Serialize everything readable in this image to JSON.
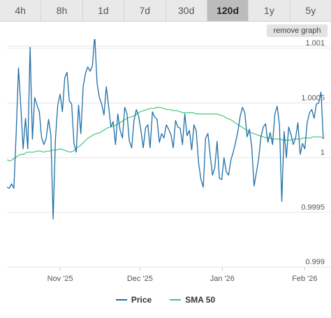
{
  "range_tabs": [
    {
      "label": "4h"
    },
    {
      "label": "8h"
    },
    {
      "label": "1d"
    },
    {
      "label": "7d"
    },
    {
      "label": "30d"
    },
    {
      "label": "120d",
      "active": true
    },
    {
      "label": "1y"
    },
    {
      "label": "5y"
    }
  ],
  "remove_graph_label": "remove graph",
  "colors": {
    "price": "#1f6fa8",
    "sma": "#3ec97a",
    "grid": "#e6e6e6",
    "tab_active": "#bcbcbc"
  },
  "chart_data": {
    "type": "line",
    "title": "",
    "xlabel": "",
    "ylabel": "",
    "ylim": [
      0.999,
      1.00102
    ],
    "y_ticks": [
      0.999,
      0.9995,
      1,
      1.0005,
      1.001
    ],
    "y_tick_labels": [
      "0.999",
      "0.9995",
      "1",
      "1.0005",
      "1.001"
    ],
    "x_ticks": [
      {
        "label": "Nov '25",
        "index": 20
      },
      {
        "label": "Dec '25",
        "index": 50
      },
      {
        "label": "Jan '26",
        "index": 81
      },
      {
        "label": "Feb '26",
        "index": 112
      }
    ],
    "grid": true,
    "legend_position": "bottom",
    "series": [
      {
        "name": "Price",
        "color": "#1f6fa8",
        "values": [
          0.99973,
          0.99972,
          0.99976,
          0.99972,
          1.00023,
          1.00082,
          1.00047,
          1.00008,
          1.00036,
          1.00008,
          1.00101,
          1.00017,
          1.00055,
          1.00048,
          1.00042,
          1.00018,
          1.00012,
          1.00018,
          1.00035,
          1.00021,
          0.99944,
          1.00017,
          1.00048,
          1.00058,
          1.00042,
          1.00073,
          1.00078,
          1.00052,
          1.00049,
          1.00013,
          1.00005,
          1.00048,
          1.00022,
          1.00065,
          1.00077,
          1.00083,
          1.00079,
          1.00084,
          1.00112,
          1.00068,
          1.00055,
          1.00049,
          1.00039,
          1.00065,
          1.00047,
          1.00028,
          1.00033,
          1.00012,
          1.0004,
          1.00025,
          1.00018,
          1.00046,
          1.0004,
          1.00015,
          1.00009,
          1.00034,
          1.00044,
          1.00038,
          1.00025,
          1.00009,
          1.00027,
          1.0003,
          1.00009,
          1.00042,
          1.00037,
          1.00035,
          1.00014,
          1.00022,
          1.00018,
          1.0003,
          1.00026,
          1.00021,
          1.00009,
          1.00034,
          1.00028,
          1.00027,
          1.00012,
          1.0004,
          1.0002,
          1.00025,
          1.00007,
          1.0003,
          1.00024,
          0.99995,
          0.9998,
          0.99973,
          1.00018,
          1.00022,
          1.00002,
          0.99984,
          0.99991,
          1.00015,
          0.99981,
          0.9998,
          1.0,
          0.99987,
          0.99984,
          0.99998,
          1.00005,
          1.00014,
          1.00024,
          1.00038,
          1.00046,
          1.00041,
          1.00019,
          1.00026,
          1.0001,
          0.99974,
          0.99986,
          0.99999,
          1.00019,
          1.00028,
          1.00031,
          1.00014,
          1.00023,
          1.00012,
          1.0004,
          1.00047,
          1.0003,
          0.9996,
          1.00024,
          1.0,
          1.00028,
          1.00021,
          1.00012,
          1.00018,
          1.00032,
          1.00003,
          1.00013,
          1.00008,
          1.00032,
          1.00041,
          1.00044,
          1.00036,
          1.00049,
          1.0005,
          1.0006,
          1.00017
        ],
        "x_start": 0,
        "x_end": 119
      },
      {
        "name": "SMA 50",
        "color": "#3ec97a",
        "values": [
          0.99998,
          0.99997,
          0.99999,
          1.00001,
          1.00003,
          1.00003,
          1.00005,
          1.00005,
          1.00005,
          1.00006,
          1.00006,
          1.00005,
          1.00006,
          1.00006,
          1.00007,
          1.00007,
          1.00008,
          1.00007,
          1.00006,
          1.00005,
          1.00006,
          1.00009,
          1.00011,
          1.00014,
          1.00017,
          1.00019,
          1.00021,
          1.00022,
          1.00023,
          1.00025,
          1.00027,
          1.00028,
          1.00029,
          1.0003,
          1.00032,
          1.00034,
          1.00036,
          1.00037,
          1.00038,
          1.0004,
          1.00042,
          1.00043,
          1.00044,
          1.00045,
          1.00045,
          1.00046,
          1.00046,
          1.00045,
          1.00044,
          1.00044,
          1.00043,
          1.00043,
          1.00042,
          1.00041,
          1.00041,
          1.00041,
          1.00041,
          1.0004,
          1.0004,
          1.0004,
          1.0004,
          1.0004,
          1.0004,
          1.0004,
          1.00039,
          1.00038,
          1.00036,
          1.00035,
          1.00033,
          1.00031,
          1.00029,
          1.00027,
          1.00025,
          1.00023,
          1.00022,
          1.00021,
          1.0002,
          1.00019,
          1.00018,
          1.00018,
          1.00017,
          1.00017,
          1.00017,
          1.00016,
          1.00016,
          1.00016,
          1.00017,
          1.00017,
          1.00017,
          1.00018,
          1.00018,
          1.00018,
          1.00019,
          1.00019,
          1.00019,
          1.00018
        ],
        "x_start": 0,
        "x_end": 119
      }
    ]
  }
}
